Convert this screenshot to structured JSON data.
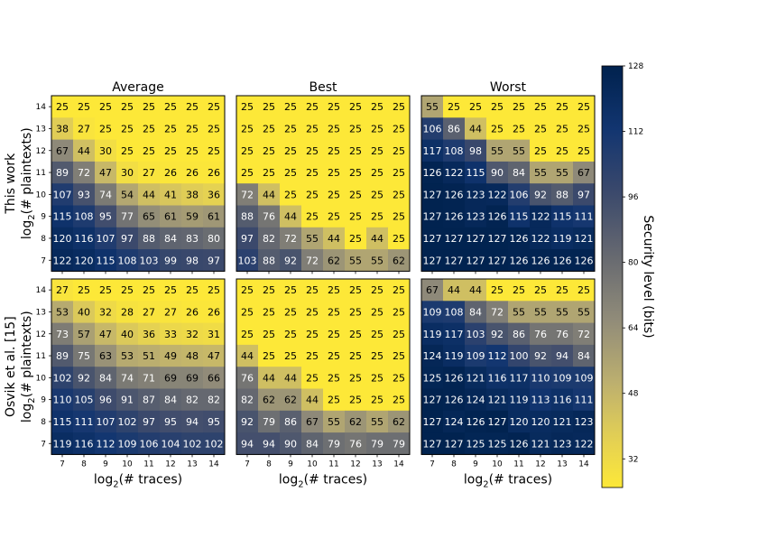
{
  "chart_data": {
    "type": "heatmap",
    "colormap": "cividis",
    "colorbar": {
      "label": "Security level (bits)",
      "min": 25,
      "max": 128,
      "ticks": [
        32,
        48,
        64,
        80,
        96,
        112,
        128
      ]
    },
    "x_ticks": [
      "7",
      "8",
      "9",
      "10",
      "11",
      "12",
      "13",
      "14"
    ],
    "y_ticks": [
      "14",
      "13",
      "12",
      "11",
      "10",
      "9",
      "8",
      "7"
    ],
    "col_titles": [
      "Average",
      "Best",
      "Worst"
    ],
    "row_labels": [
      {
        "line1": "This work",
        "base": "log",
        "sub": "2",
        "rest": "(# plaintexts)"
      },
      {
        "line1": "Osvik et al. [15]",
        "base": "log",
        "sub": "2",
        "rest": "(# plaintexts)"
      }
    ],
    "xlabel": {
      "base": "log",
      "sub": "2",
      "rest": "(# traces)"
    },
    "panels": [
      {
        "row": 0,
        "col": 0,
        "values": [
          [
            25,
            25,
            25,
            25,
            25,
            25,
            25,
            25
          ],
          [
            38,
            27,
            25,
            25,
            25,
            25,
            25,
            25
          ],
          [
            67,
            44,
            30,
            25,
            25,
            25,
            25,
            25
          ],
          [
            89,
            72,
            47,
            30,
            27,
            26,
            26,
            26
          ],
          [
            107,
            93,
            74,
            54,
            44,
            41,
            38,
            36
          ],
          [
            115,
            108,
            95,
            77,
            65,
            61,
            59,
            61
          ],
          [
            120,
            116,
            107,
            97,
            88,
            84,
            83,
            80
          ],
          [
            122,
            120,
            115,
            108,
            103,
            99,
            98,
            97
          ]
        ]
      },
      {
        "row": 0,
        "col": 1,
        "values": [
          [
            25,
            25,
            25,
            25,
            25,
            25,
            25,
            25
          ],
          [
            25,
            25,
            25,
            25,
            25,
            25,
            25,
            25
          ],
          [
            25,
            25,
            25,
            25,
            25,
            25,
            25,
            25
          ],
          [
            25,
            25,
            25,
            25,
            25,
            25,
            25,
            25
          ],
          [
            72,
            44,
            25,
            25,
            25,
            25,
            25,
            25
          ],
          [
            88,
            76,
            44,
            25,
            25,
            25,
            25,
            25
          ],
          [
            97,
            82,
            72,
            55,
            44,
            25,
            44,
            25
          ],
          [
            103,
            88,
            92,
            72,
            62,
            55,
            55,
            62
          ]
        ]
      },
      {
        "row": 0,
        "col": 2,
        "values": [
          [
            55,
            25,
            25,
            25,
            25,
            25,
            25,
            25
          ],
          [
            106,
            86,
            44,
            25,
            25,
            25,
            25,
            25
          ],
          [
            117,
            108,
            98,
            55,
            55,
            25,
            25,
            25
          ],
          [
            126,
            122,
            115,
            90,
            84,
            55,
            55,
            67
          ],
          [
            127,
            126,
            123,
            122,
            106,
            92,
            88,
            97
          ],
          [
            127,
            126,
            123,
            126,
            115,
            122,
            115,
            111
          ],
          [
            127,
            127,
            127,
            127,
            126,
            122,
            119,
            121
          ],
          [
            127,
            127,
            127,
            127,
            126,
            126,
            126,
            126
          ]
        ]
      },
      {
        "row": 1,
        "col": 0,
        "values": [
          [
            27,
            25,
            25,
            25,
            25,
            25,
            25,
            25
          ],
          [
            53,
            40,
            32,
            28,
            27,
            27,
            26,
            26
          ],
          [
            73,
            57,
            47,
            40,
            36,
            33,
            32,
            31
          ],
          [
            89,
            75,
            63,
            53,
            51,
            49,
            48,
            47
          ],
          [
            102,
            92,
            84,
            74,
            71,
            69,
            69,
            66
          ],
          [
            110,
            105,
            96,
            91,
            87,
            84,
            82,
            82
          ],
          [
            115,
            111,
            107,
            102,
            97,
            95,
            94,
            95
          ],
          [
            119,
            116,
            112,
            109,
            106,
            104,
            102,
            102
          ]
        ]
      },
      {
        "row": 1,
        "col": 1,
        "values": [
          [
            25,
            25,
            25,
            25,
            25,
            25,
            25,
            25
          ],
          [
            25,
            25,
            25,
            25,
            25,
            25,
            25,
            25
          ],
          [
            25,
            25,
            25,
            25,
            25,
            25,
            25,
            25
          ],
          [
            44,
            25,
            25,
            25,
            25,
            25,
            25,
            25
          ],
          [
            76,
            44,
            44,
            25,
            25,
            25,
            25,
            25
          ],
          [
            82,
            62,
            62,
            44,
            25,
            25,
            25,
            25
          ],
          [
            92,
            79,
            86,
            67,
            55,
            62,
            55,
            62
          ],
          [
            94,
            94,
            90,
            84,
            79,
            76,
            79,
            79
          ]
        ]
      },
      {
        "row": 1,
        "col": 2,
        "values": [
          [
            67,
            44,
            44,
            25,
            25,
            25,
            25,
            25
          ],
          [
            109,
            108,
            84,
            72,
            55,
            55,
            55,
            55
          ],
          [
            119,
            117,
            103,
            92,
            86,
            76,
            76,
            72
          ],
          [
            124,
            119,
            109,
            112,
            100,
            92,
            94,
            84
          ],
          [
            125,
            126,
            121,
            116,
            117,
            110,
            109,
            109
          ],
          [
            127,
            126,
            124,
            121,
            119,
            113,
            116,
            111
          ],
          [
            127,
            124,
            126,
            127,
            120,
            120,
            121,
            123
          ],
          [
            127,
            127,
            125,
            125,
            126,
            121,
            123,
            122
          ]
        ]
      }
    ]
  }
}
